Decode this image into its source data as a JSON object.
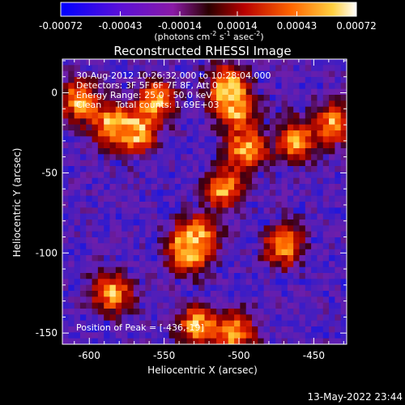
{
  "chart_data": {
    "type": "heatmap",
    "title": "Reconstructed RHESSI Image",
    "xlabel": "Heliocentric X (arcsec)",
    "ylabel": "Heliocentric Y (arcsec)",
    "xlim": [
      -618,
      -428
    ],
    "ylim": [
      -157,
      21
    ],
    "xticks": [
      "-600",
      "-550",
      "-500",
      "-450"
    ],
    "xtick_values": [
      -600,
      -550,
      -500,
      -450
    ],
    "yticks": [
      "0",
      "-50",
      "-100",
      "-150"
    ],
    "ytick_values": [
      0,
      -50,
      -100,
      -150
    ],
    "colorbar": {
      "ticks": [
        "-0.00072",
        "-0.00043",
        "-0.00014",
        "0.00014",
        "0.00043",
        "0.00072"
      ],
      "tick_values": [
        -0.00072,
        -0.00043,
        -0.00014,
        0.00014,
        0.00043,
        0.00072
      ],
      "range": [
        -0.00072,
        0.00072
      ],
      "unit_parts": [
        "(photons cm",
        "-2",
        " s",
        "-1",
        " asec",
        "-2",
        ")"
      ]
    },
    "annotations": [
      "30-Aug-2012 10:26:32.000 to 10:28:04.000",
      "Detectors: 3F 5F 6F 7F 8F, Att 0",
      "Energy Range: 25.0 - 50.0 keV",
      "Clean     Total counts: 1.69E+03"
    ],
    "peak_label": "Position of Peak = [-436,-19]",
    "peak": [
      -436,
      -19
    ],
    "bright_sources": [
      {
        "x": -607,
        "y": -5
      },
      {
        "x": -585,
        "y": -20
      },
      {
        "x": -568,
        "y": -25
      },
      {
        "x": -555,
        "y": -5
      },
      {
        "x": -503,
        "y": -10
      },
      {
        "x": -508,
        "y": 5
      },
      {
        "x": -495,
        "y": -35
      },
      {
        "x": -510,
        "y": -60
      },
      {
        "x": -528,
        "y": -90
      },
      {
        "x": -535,
        "y": -100
      },
      {
        "x": -462,
        "y": -30
      },
      {
        "x": -436,
        "y": -19
      },
      {
        "x": -470,
        "y": -95
      },
      {
        "x": -528,
        "y": -145
      },
      {
        "x": -503,
        "y": -150
      },
      {
        "x": -585,
        "y": -125
      }
    ]
  },
  "footer_date": "13-May-2022 23:44"
}
